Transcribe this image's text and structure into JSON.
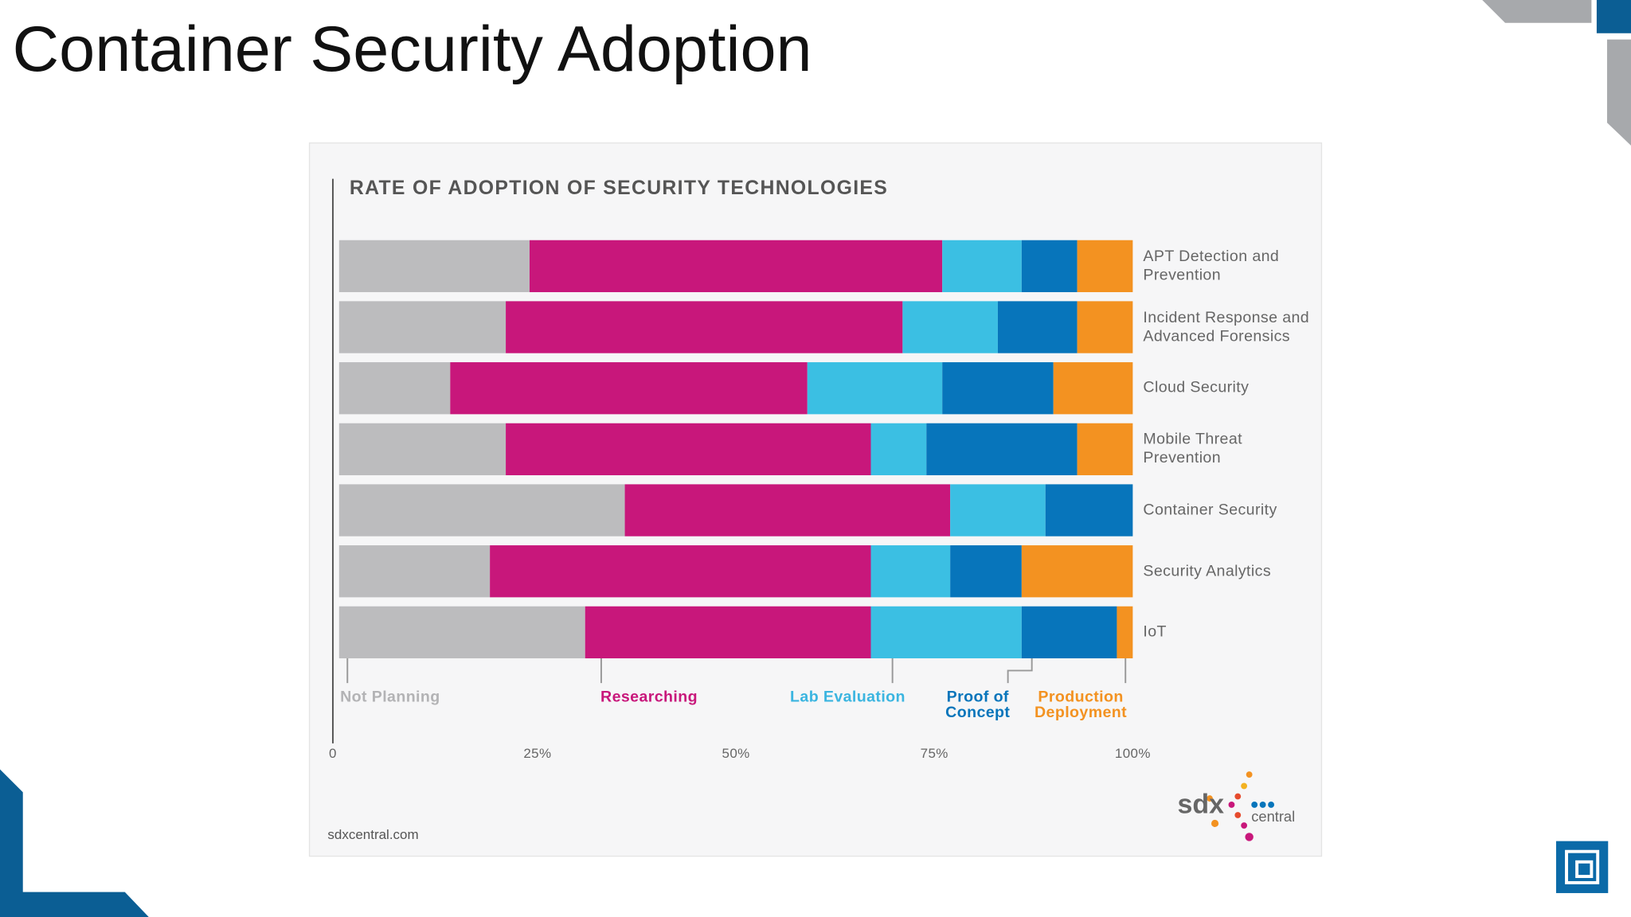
{
  "slide_title": "Container Security Adoption",
  "chart_data": {
    "type": "stacked-bar",
    "title": "RATE OF ADOPTION OF SECURITY TECHNOLOGIES",
    "orientation": "horizontal",
    "categories": [
      "APT Detection and Prevention",
      "Incident Response and Advanced Forensics",
      "Cloud Security",
      "Mobile Threat Prevention",
      "Container Security",
      "Security Analytics",
      "IoT"
    ],
    "series": [
      {
        "name": "Not Planning",
        "color": "#bcbcbe",
        "label_color": "#b3b3b5",
        "values": [
          24,
          21,
          14,
          21,
          36,
          19,
          31
        ]
      },
      {
        "name": "Researching",
        "color": "#c8177b",
        "label_color": "#c8177b",
        "values": [
          52,
          50,
          45,
          46,
          41,
          48,
          36
        ]
      },
      {
        "name": "Lab Evaluation",
        "color": "#3bbfe3",
        "label_color": "#3bb5e0",
        "values": [
          10,
          12,
          17,
          7,
          12,
          10,
          19
        ]
      },
      {
        "name": "Proof of Concept",
        "color": "#0775bb",
        "label_color": "#0775bb",
        "values": [
          7,
          10,
          14,
          19,
          11,
          9,
          12
        ]
      },
      {
        "name": "Production Deployment",
        "color": "#f39221",
        "label_color": "#f39221",
        "values": [
          7,
          7,
          10,
          7,
          0,
          14,
          2
        ]
      }
    ],
    "xlim": [
      0,
      100
    ],
    "xticks": [
      0,
      {
        "value": 25,
        "label": "25%"
      },
      {
        "value": 50,
        "label": "50%"
      },
      {
        "value": 75,
        "label": "75%"
      },
      {
        "value": 100,
        "label": "100%"
      }
    ],
    "grid": false,
    "source": "sdxcentral.com",
    "logo": {
      "mark": "sdx",
      "text": "central"
    }
  }
}
